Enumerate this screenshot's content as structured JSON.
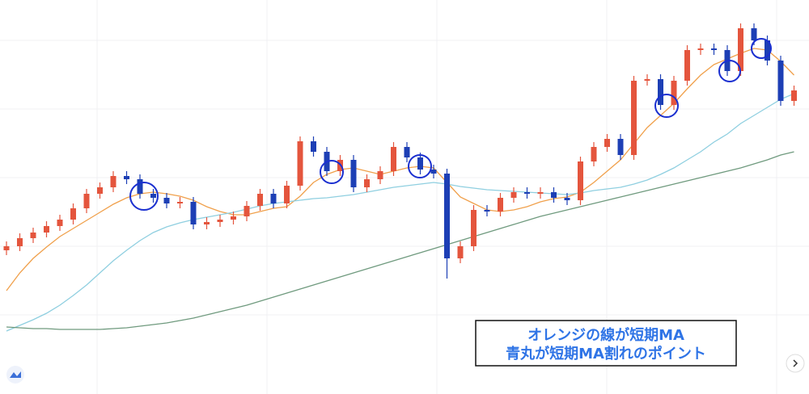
{
  "chart_data": {
    "type": "candlestick",
    "ylim": [
      0,
      488
    ],
    "grid": true,
    "up_color": "#e4553d",
    "down_color": "#1d3fb5",
    "open": [
      178,
      183,
      193,
      200,
      208,
      216,
      230,
      248,
      256,
      270,
      266,
      248,
      243,
      236,
      238,
      210,
      213,
      216,
      220,
      233,
      248,
      236,
      258,
      313,
      300,
      276,
      290,
      256,
      266,
      276,
      306,
      293,
      278,
      273,
      168,
      183,
      228,
      226,
      243,
      250,
      248,
      250,
      243,
      240,
      288,
      306,
      316,
      296,
      388,
      390,
      358,
      388,
      426,
      428,
      426,
      400,
      453,
      438,
      413,
      363
    ],
    "high": [
      189,
      199,
      206,
      214,
      222,
      236,
      254,
      262,
      276,
      276,
      272,
      254,
      249,
      244,
      244,
      219,
      222,
      226,
      239,
      254,
      254,
      264,
      319,
      319,
      306,
      296,
      296,
      272,
      282,
      312,
      312,
      299,
      284,
      279,
      189,
      234,
      234,
      249,
      256,
      256,
      256,
      256,
      249,
      294,
      312,
      322,
      322,
      394,
      396,
      396,
      394,
      432,
      434,
      434,
      432,
      459,
      459,
      444,
      419,
      382
    ],
    "low": [
      172,
      177,
      187,
      194,
      202,
      210,
      224,
      242,
      250,
      260,
      242,
      237,
      230,
      230,
      204,
      204,
      207,
      210,
      214,
      227,
      230,
      230,
      252,
      294,
      270,
      270,
      250,
      250,
      260,
      270,
      287,
      272,
      267,
      143,
      162,
      177,
      220,
      220,
      237,
      242,
      242,
      237,
      234,
      234,
      282,
      300,
      290,
      290,
      382,
      352,
      352,
      382,
      420,
      420,
      394,
      394,
      432,
      407,
      357,
      357
    ],
    "close": [
      183,
      193,
      200,
      208,
      216,
      230,
      248,
      256,
      270,
      266,
      248,
      243,
      236,
      238,
      210,
      213,
      216,
      220,
      233,
      248,
      236,
      258,
      313,
      300,
      276,
      290,
      256,
      266,
      276,
      306,
      293,
      278,
      273,
      168,
      183,
      228,
      226,
      243,
      250,
      248,
      250,
      243,
      240,
      288,
      306,
      316,
      296,
      388,
      390,
      358,
      388,
      426,
      428,
      426,
      400,
      453,
      438,
      413,
      363,
      376
    ],
    "series": [
      {
        "color": "#f0a04b",
        "values": [
          128,
          150,
          168,
          182,
          195,
          205,
          215,
          225,
          235,
          243,
          248,
          250,
          248,
          245,
          240,
          232,
          226,
          222,
          222,
          226,
          230,
          232,
          245,
          262,
          272,
          278,
          280,
          276,
          272,
          276,
          280,
          282,
          280,
          262,
          244,
          236,
          228,
          226,
          228,
          232,
          238,
          242,
          244,
          250,
          262,
          276,
          290,
          310,
          330,
          345,
          360,
          378,
          395,
          408,
          415,
          422,
          428,
          426,
          412,
          395
        ]
      },
      {
        "color": "#8fcfe0",
        "values": [
          78,
          85,
          92,
          100,
          110,
          122,
          135,
          150,
          165,
          178,
          190,
          200,
          207,
          212,
          216,
          219,
          222,
          225,
          229,
          233,
          236,
          238,
          240,
          242,
          243,
          245,
          247,
          250,
          253,
          256,
          258,
          260,
          262,
          260,
          257,
          255,
          253,
          252,
          251,
          250,
          249,
          248,
          247,
          249,
          252,
          254,
          256,
          260,
          265,
          272,
          280,
          290,
          300,
          312,
          322,
          335,
          345,
          355,
          365,
          372
        ]
      },
      {
        "color": "#6f9a7e",
        "values": [
          83,
          82,
          81,
          81,
          80,
          80,
          80,
          80,
          81,
          82,
          84,
          86,
          88,
          91,
          94,
          98,
          102,
          106,
          110,
          115,
          120,
          125,
          130,
          135,
          140,
          145,
          150,
          155,
          160,
          165,
          170,
          175,
          180,
          185,
          190,
          195,
          200,
          205,
          210,
          215,
          220,
          224,
          228,
          232,
          236,
          240,
          244,
          248,
          252,
          256,
          260,
          264,
          268,
          272,
          276,
          280,
          285,
          290,
          296,
          300
        ]
      }
    ],
    "annotation": [
      "オレンジの線が短期MA",
      "青丸が短期MA割れのポイント"
    ]
  }
}
